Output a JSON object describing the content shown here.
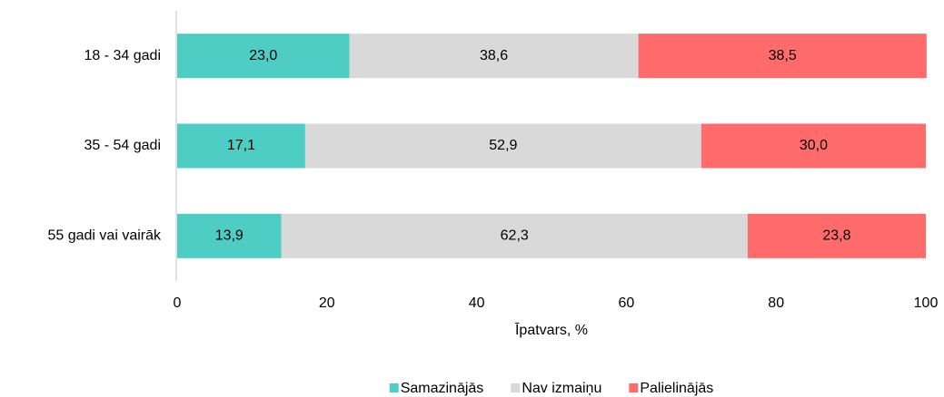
{
  "chart_data": {
    "type": "bar",
    "orientation": "horizontal",
    "stacked": true,
    "categories": [
      "18 - 34 gadi",
      "35 - 54 gadi",
      "55 gadi vai vairāk"
    ],
    "series": [
      {
        "name": "Samazinājās",
        "color": "#4ecdc4",
        "values": [
          23.0,
          17.1,
          13.9
        ],
        "value_labels": [
          "23,0",
          "17,1",
          "13,9"
        ]
      },
      {
        "name": "Nav izmaiņu",
        "color": "#d9d9d9",
        "values": [
          38.6,
          52.9,
          62.3
        ],
        "value_labels": [
          "38,6",
          "52,9",
          "62,3"
        ]
      },
      {
        "name": "Palielinājās",
        "color": "#ff6b6b",
        "values": [
          38.5,
          30.0,
          23.8
        ],
        "value_labels": [
          "38,5",
          "30,0",
          "23,8"
        ]
      }
    ],
    "xlabel": "Īpatvars, %",
    "xlim": [
      0,
      100
    ],
    "xticks": [
      0,
      20,
      40,
      60,
      80,
      100
    ],
    "legend": "bottom"
  }
}
